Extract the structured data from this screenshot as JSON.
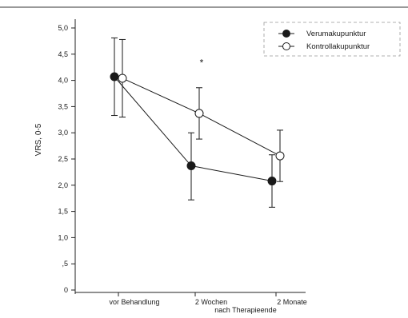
{
  "chart_data": {
    "type": "line",
    "ylabel": "VRS, 0-5",
    "xlabel": "",
    "ylim": [
      0,
      5
    ],
    "yticks": [
      {
        "value": 0,
        "label": "0"
      },
      {
        "value": 0.5,
        "label": ",5"
      },
      {
        "value": 1.0,
        "label": "1,0"
      },
      {
        "value": 1.5,
        "label": "1,5"
      },
      {
        "value": 2.0,
        "label": "2,0"
      },
      {
        "value": 2.5,
        "label": "2,5"
      },
      {
        "value": 3.0,
        "label": "3,0"
      },
      {
        "value": 3.5,
        "label": "3,5"
      },
      {
        "value": 4.0,
        "label": "4,0"
      },
      {
        "value": 4.5,
        "label": "4,5"
      },
      {
        "value": 5.0,
        "label": "5,0"
      }
    ],
    "categories": [
      "vor Behandlung",
      "2 Wochen",
      "2 Monate"
    ],
    "category_sublabel": "nach Therapieende",
    "series": [
      {
        "name": "Verumakupunktur",
        "marker": "filled-circle",
        "color": "#1a1a1a",
        "values": [
          4.07,
          2.37,
          2.08
        ],
        "error_low": [
          3.33,
          1.72,
          1.58
        ],
        "error_high": [
          4.81,
          3.0,
          2.58
        ]
      },
      {
        "name": "Kontrollakupunktur",
        "marker": "open-circle",
        "color": "#1a1a1a",
        "values": [
          4.04,
          3.37,
          2.56
        ],
        "error_low": [
          3.3,
          2.88,
          2.07
        ],
        "error_high": [
          4.78,
          3.86,
          3.05
        ]
      }
    ],
    "annotations": [
      {
        "text": "*",
        "category_index": 1,
        "y": 4.35
      }
    ],
    "grid": false,
    "legend_position": "top-right"
  }
}
